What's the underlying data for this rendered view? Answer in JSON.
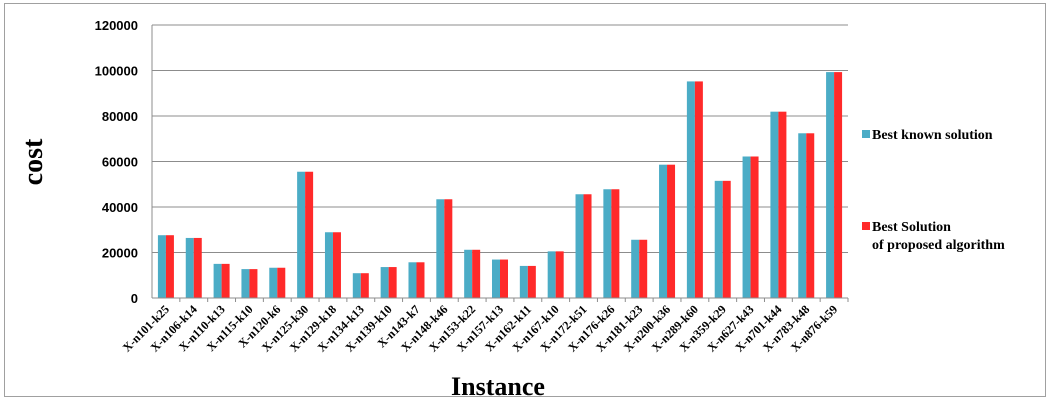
{
  "chart_data": {
    "type": "bar",
    "xlabel": "Instance",
    "ylabel": "cost",
    "ylim": [
      0,
      120000
    ],
    "yticks": [
      "0",
      "20000",
      "40000",
      "60000",
      "80000",
      "100000",
      "120000"
    ],
    "grid": "horizontal",
    "legend_position": "right",
    "categories": [
      "X-n101-k25",
      "X-n106-k14",
      "X-n110-k13",
      "X-n115-k10",
      "X-n120-k6",
      "X-n125-k30",
      "X-n129-k18",
      "X-n134-k13",
      "X-n139-k10",
      "X-n143-k7",
      "X-n148-k46",
      "X-n153-k22",
      "X-n157-k13",
      "X-n162-k11",
      "X-n167-k10",
      "X-n172-k51",
      "X-n176-k26",
      "X-n181-k23",
      "X-n200-k36",
      "X-n289-k60",
      "X-n359-k29",
      "X-n627-k43",
      "X-n701-k44",
      "X-n783-k48",
      "X-n876-k59"
    ],
    "series": [
      {
        "name": "Best known solution",
        "color": "#4bacc6",
        "values": [
          27600,
          26400,
          15000,
          12700,
          13300,
          55500,
          28900,
          10900,
          13600,
          15700,
          43400,
          21200,
          16900,
          14100,
          20500,
          45600,
          47800,
          25600,
          58600,
          95200,
          51500,
          62200,
          81900,
          72400,
          99300
        ]
      },
      {
        "name_lines": [
          "Best Solution",
          "of proposed algorithm"
        ],
        "color": "#ff2a2a",
        "values": [
          27600,
          26400,
          15000,
          12700,
          13300,
          55500,
          28900,
          10900,
          13600,
          15700,
          43400,
          21200,
          16900,
          14100,
          20500,
          45600,
          47800,
          25600,
          58600,
          95200,
          51500,
          62200,
          81900,
          72400,
          99300
        ]
      }
    ]
  }
}
